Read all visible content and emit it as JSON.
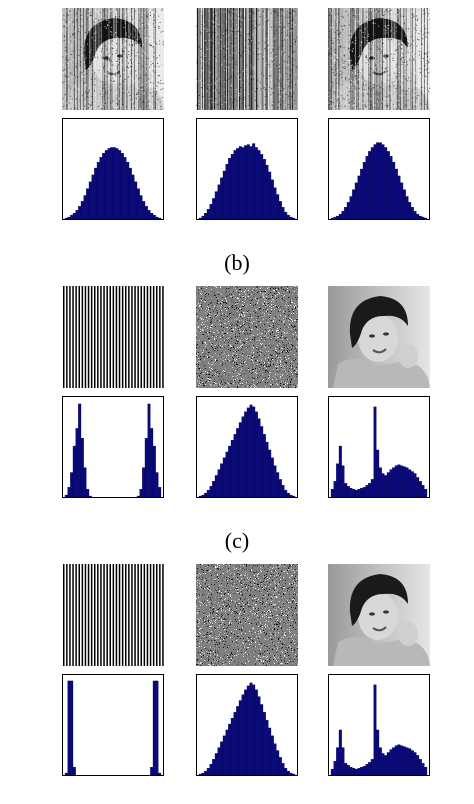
{
  "captions": {
    "b": "(b)",
    "c": "(c)"
  },
  "colors": {
    "bar": "#0a0a7a",
    "frame": "#000000"
  },
  "rows": [
    {
      "images": [
        "noisy-portrait",
        "vertical-noise",
        "noisy-portrait"
      ],
      "hists": [
        [
          1,
          2,
          4,
          6,
          9,
          13,
          18,
          24,
          31,
          38,
          45,
          52,
          58,
          63,
          67,
          70,
          72,
          73,
          73,
          72,
          70,
          67,
          63,
          58,
          52,
          45,
          38,
          31,
          24,
          18,
          13,
          9,
          6,
          4,
          2,
          1
        ],
        [
          1,
          3,
          6,
          10,
          15,
          21,
          28,
          35,
          42,
          49,
          56,
          62,
          66,
          70,
          72,
          74,
          73,
          75,
          76,
          74,
          77,
          73,
          70,
          66,
          61,
          55,
          48,
          40,
          32,
          25,
          18,
          12,
          7,
          4,
          2,
          1
        ],
        [
          1,
          2,
          3,
          5,
          8,
          12,
          17,
          23,
          30,
          37,
          44,
          51,
          58,
          64,
          69,
          73,
          76,
          78,
          78,
          76,
          73,
          69,
          64,
          58,
          51,
          44,
          37,
          30,
          23,
          17,
          12,
          8,
          5,
          3,
          2,
          1
        ]
      ]
    },
    {
      "images": [
        "vertical-stripes",
        "salt-noise",
        "portrait"
      ],
      "hists": [
        [
          2,
          10,
          25,
          52,
          70,
          95,
          60,
          30,
          8,
          1,
          0,
          0,
          0,
          0,
          0,
          0,
          0,
          0,
          0,
          0,
          0,
          0,
          0,
          0,
          0,
          0,
          0,
          1,
          8,
          30,
          60,
          95,
          70,
          52,
          25,
          10
        ],
        [
          1,
          2,
          4,
          7,
          11,
          16,
          22,
          28,
          34,
          40,
          46,
          52,
          58,
          64,
          70,
          76,
          82,
          87,
          91,
          94,
          92,
          87,
          80,
          72,
          64,
          56,
          48,
          40,
          32,
          25,
          18,
          12,
          7,
          4,
          2,
          1
        ],
        [
          8,
          16,
          34,
          52,
          32,
          14,
          11,
          9,
          8,
          7,
          8,
          9,
          10,
          12,
          14,
          18,
          92,
          48,
          30,
          24,
          22,
          25,
          28,
          30,
          32,
          33,
          32,
          31,
          30,
          28,
          26,
          24,
          20,
          16,
          12,
          8
        ]
      ]
    },
    {
      "images": [
        "vertical-stripes",
        "salt-noise",
        "portrait"
      ],
      "hists": [
        [
          2,
          96,
          96,
          8,
          0,
          0,
          0,
          0,
          0,
          0,
          0,
          0,
          0,
          0,
          0,
          0,
          0,
          0,
          0,
          0,
          0,
          0,
          0,
          0,
          0,
          0,
          0,
          0,
          0,
          0,
          0,
          0,
          8,
          96,
          96,
          2
        ],
        [
          1,
          2,
          4,
          7,
          11,
          16,
          22,
          28,
          34,
          40,
          46,
          52,
          58,
          64,
          70,
          76,
          82,
          87,
          91,
          94,
          92,
          87,
          80,
          72,
          64,
          56,
          48,
          40,
          32,
          25,
          18,
          12,
          7,
          4,
          2,
          1
        ],
        [
          6,
          14,
          28,
          46,
          28,
          12,
          10,
          8,
          7,
          6,
          7,
          8,
          9,
          11,
          13,
          16,
          92,
          46,
          28,
          22,
          20,
          23,
          26,
          28,
          30,
          31,
          30,
          29,
          28,
          27,
          25,
          23,
          20,
          16,
          12,
          8
        ]
      ]
    }
  ]
}
